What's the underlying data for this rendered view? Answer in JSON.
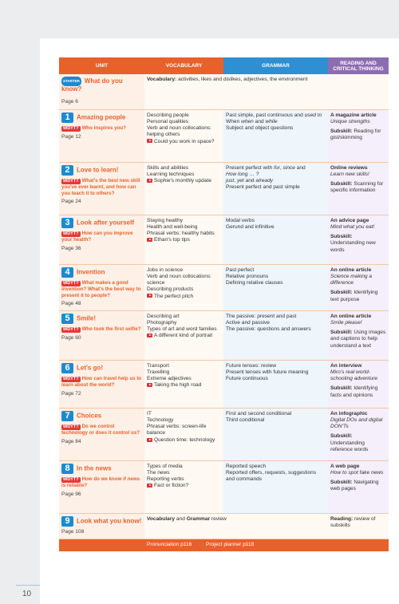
{
  "headers": {
    "unit": "Unit",
    "vocabulary": "Vocabulary",
    "grammar": "Grammar",
    "reading": "Reading and critical thinking"
  },
  "starter": {
    "badge": "STARTER",
    "title": "What do you know?",
    "vocab_label": "Vocabulary:",
    "vocab_text": " activities, likes and dislikes, adjectives, the environment",
    "page": "Page 6"
  },
  "units": [
    {
      "num": "1",
      "title": "Amazing people",
      "question": "Who inspires you?",
      "page": "Page 12",
      "vocab": [
        "Describing people",
        "Personal qualities",
        "Verb and noun collocations: helping others"
      ],
      "video": "Could you work in space?",
      "grammar": [
        {
          "t": "Past simple, past continuous and "
        },
        {
          "t": "used to",
          "i": true
        },
        {
          "t": " When ",
          "br": true
        },
        {
          "t": "when",
          "i": true
        },
        {
          "t": " and "
        },
        {
          "t": "while",
          "i": true
        },
        {
          "t": " Subject and object questions",
          "br": true
        }
      ],
      "reading_title": "A magazine article",
      "reading_sub": "Unique strengths",
      "subskill": "Reading for gist/skimming"
    },
    {
      "num": "2",
      "title": "Love to learn!",
      "question": "What's the best new skill you've ever learnt, and how can you teach it to others?",
      "page": "Page 24",
      "vocab": [
        "Skills and abilities",
        "Learning techniques"
      ],
      "video": "Sophie's monthly update",
      "grammar_raw": "g2",
      "reading_title": "Online reviews",
      "reading_sub": "Learn new skills!",
      "subskill": "Scanning for specific information"
    },
    {
      "num": "3",
      "title": "Look after yourself",
      "question": "How can you improve your health?",
      "page": "Page 36",
      "vocab": [
        "Staying healthy",
        "Health and well-being",
        "Phrasal verbs: healthy habits"
      ],
      "video": "Ethan's top tips",
      "grammar_lines": [
        "Modal verbs",
        "Gerund and infinitive"
      ],
      "reading_title": "An advice page",
      "reading_sub": "Mind what you eat!",
      "subskill": "Understanding new words"
    },
    {
      "num": "4",
      "title": "Invention",
      "question": "What makes a good invention? What's the best way to present it to people?",
      "page": "Page 48",
      "vocab": [
        "Jobs in science",
        "Verb and noun collocations: science",
        "Describing products"
      ],
      "video": "The perfect pitch",
      "grammar_lines": [
        "Past perfect",
        "Relative pronouns",
        "Defining relative clauses"
      ],
      "reading_title": "An online article",
      "reading_sub": "Science making a difference",
      "subskill": "Identifying text purpose"
    },
    {
      "num": "5",
      "title": "Smile!",
      "question": "Who took the first selfie?",
      "page": "Page 60",
      "vocab": [
        "Describing art",
        "Photography",
        "Types of art and word families"
      ],
      "video": "A different kind of portrait",
      "grammar_lines": [
        "The passive: present and past",
        "Active and passive",
        "The passive: questions and answers"
      ],
      "reading_title": "An online article",
      "reading_sub": "Smile please!",
      "subskill": "Using images and captions to help understand a text"
    },
    {
      "num": "6",
      "title": "Let's go!",
      "question": "How can travel help us to learn about the world?",
      "page": "Page 72",
      "vocab": [
        "Transport",
        "Travelling",
        "Extreme adjectives"
      ],
      "video": "Taking the high road",
      "grammar_lines": [
        "Future tenses: review",
        "Present tenses with future meaning",
        "Future continuous"
      ],
      "reading_title": "An interview",
      "reading_sub": "Miro's real world-schooling adventure",
      "subskill": "Identifying facts and opinions"
    },
    {
      "num": "7",
      "title": "Choices",
      "question": "Do we control technology or does it control us?",
      "page": "Page 84",
      "vocab": [
        "IT",
        "Technology",
        "Phrasal verbs: screen-life balance"
      ],
      "video": "Question time: technology",
      "grammar_lines": [
        "First and second conditional",
        "Third conditional"
      ],
      "reading_title": "An infographic",
      "reading_sub": "Digital DOs and digital DON'Ts",
      "subskill": "Understanding reference words"
    },
    {
      "num": "8",
      "title": "In the news",
      "question": "How do we know if news is reliable?",
      "page": "Page 96",
      "vocab": [
        "Types of media",
        "The news",
        "Reporting verbs"
      ],
      "video": "Fact or fiction?",
      "grammar_lines": [
        "Reported speech",
        "Reported offers, requests, suggestions and commands"
      ],
      "reading_title": "A web page",
      "reading_sub": "How to spot fake news",
      "subskill": "Navigating web pages"
    }
  ],
  "g2": {
    "a": "Present perfect with ",
    "b": "for",
    "c": ", ",
    "d": "since",
    "e": " and",
    "f": "How long … ?",
    "g": "just",
    "h": ", ",
    "i": "yet",
    "j": " and ",
    "k": "already",
    "l": "Present perfect and past simple"
  },
  "unit9": {
    "num": "9",
    "title": "Look what you know!",
    "page": "Page 108",
    "vg_a": "Vocabulary",
    "vg_b": " and ",
    "vg_c": "Grammar",
    "vg_d": " review",
    "rd_a": "Reading:",
    "rd_b": " review of subskills"
  },
  "wdyt": "WDYT?",
  "subskill_label": "Subskill:",
  "footer": {
    "pron": "Pronunciation p116",
    "proj": "Project planner p118"
  },
  "page_number": "10"
}
